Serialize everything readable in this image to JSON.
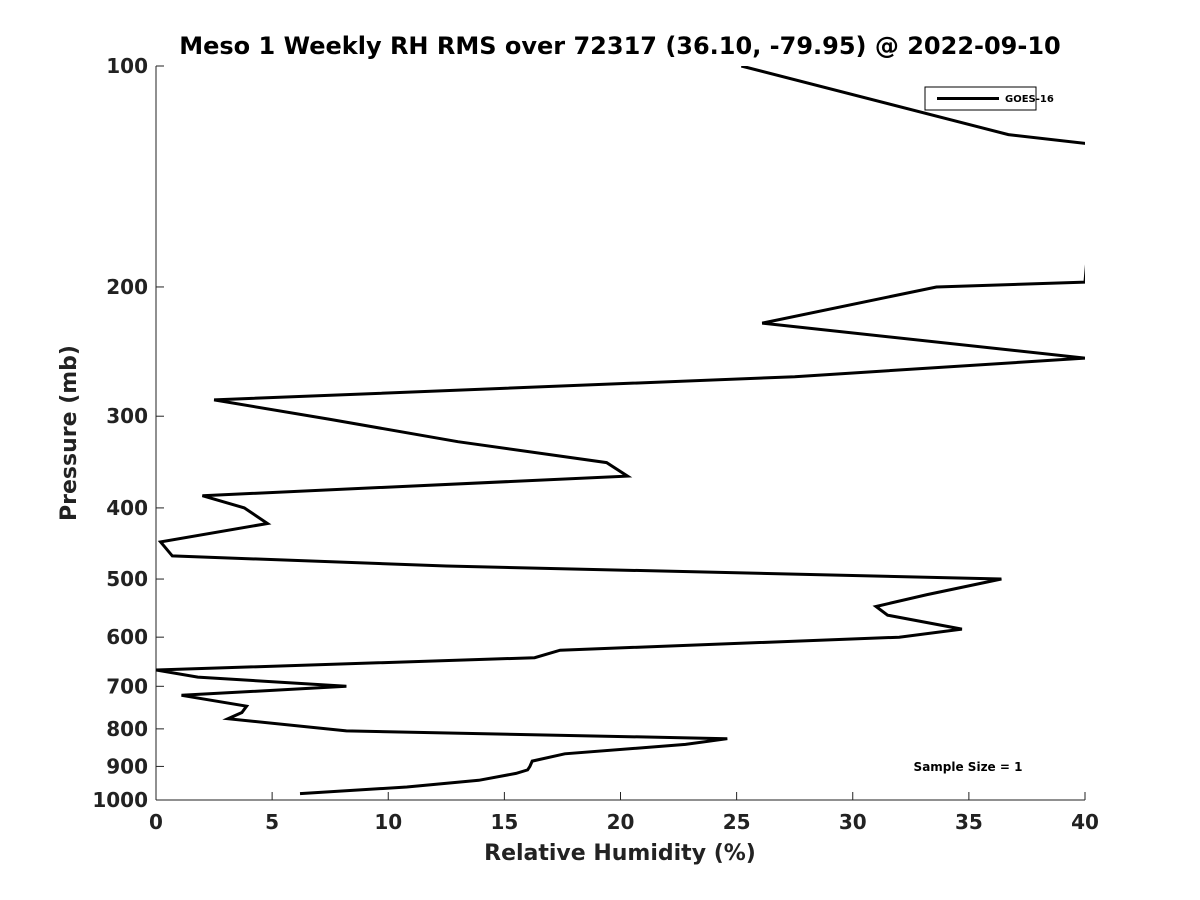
{
  "chart_data": {
    "type": "line",
    "title": "Meso 1 Weekly RH RMS over 72317 (36.10, -79.95) @ 2022-09-10",
    "xlabel": "Relative Humidity (%)",
    "ylabel": "Pressure (mb)",
    "xlim": [
      0,
      40
    ],
    "ylim": [
      100,
      1000
    ],
    "y_scale": "log",
    "y_reversed": true,
    "xticks": [
      0,
      5,
      10,
      15,
      20,
      25,
      30,
      35,
      40
    ],
    "xtick_labels": [
      "0",
      "5",
      "10",
      "15",
      "20",
      "25",
      "30",
      "35",
      "40"
    ],
    "yticks": [
      100,
      200,
      300,
      400,
      500,
      600,
      700,
      800,
      900,
      1000
    ],
    "ytick_labels": [
      "100",
      "200",
      "300",
      "400",
      "500",
      "600",
      "700",
      "800",
      "900",
      "1000"
    ],
    "grid": false,
    "legend": {
      "placement": "top-right",
      "entries": [
        "GOES-16"
      ]
    },
    "annotation": "Sample Size = 1",
    "series": [
      {
        "name": "GOES-16",
        "color": "#000000",
        "points": [
          [
            25.2,
            100
          ],
          [
            36.7,
            124
          ],
          [
            40.5,
            128
          ],
          [
            40.0,
            197
          ],
          [
            33.6,
            200
          ],
          [
            26.1,
            224
          ],
          [
            40.0,
            250
          ],
          [
            27.5,
            265
          ],
          [
            2.5,
            285
          ],
          [
            7.5,
            303
          ],
          [
            13.0,
            325
          ],
          [
            19.4,
            347
          ],
          [
            20.3,
            362
          ],
          [
            2.0,
            385
          ],
          [
            3.8,
            400
          ],
          [
            4.8,
            420
          ],
          [
            0.2,
            445
          ],
          [
            0.7,
            465
          ],
          [
            12.5,
            480
          ],
          [
            36.4,
            500
          ],
          [
            33.2,
            525
          ],
          [
            31.0,
            545
          ],
          [
            31.5,
            560
          ],
          [
            34.7,
            585
          ],
          [
            32.0,
            600
          ],
          [
            17.4,
            625
          ],
          [
            16.3,
            640
          ],
          [
            0.0,
            665
          ],
          [
            1.8,
            680
          ],
          [
            8.2,
            700
          ],
          [
            1.1,
            720
          ],
          [
            3.9,
            745
          ],
          [
            3.7,
            760
          ],
          [
            3.1,
            775
          ],
          [
            8.2,
            805
          ],
          [
            24.6,
            825
          ],
          [
            22.8,
            840
          ],
          [
            17.6,
            865
          ],
          [
            16.2,
            885
          ],
          [
            16.1,
            900
          ],
          [
            16.0,
            910
          ],
          [
            15.5,
            920
          ],
          [
            13.9,
            940
          ],
          [
            10.8,
            960
          ],
          [
            6.2,
            980
          ]
        ]
      }
    ]
  }
}
